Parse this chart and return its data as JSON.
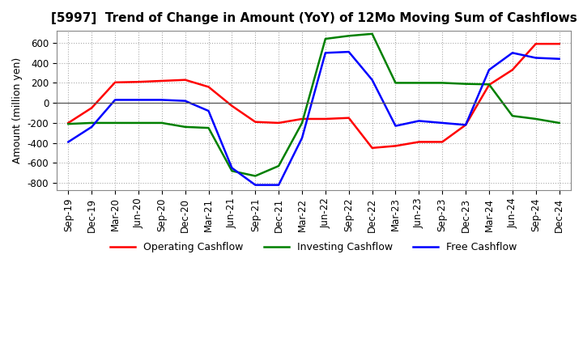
{
  "title": "[5997]  Trend of Change in Amount (YoY) of 12Mo Moving Sum of Cashflows",
  "ylabel": "Amount (million yen)",
  "x_labels": [
    "Sep-19",
    "Dec-19",
    "Mar-20",
    "Jun-20",
    "Sep-20",
    "Dec-20",
    "Mar-21",
    "Jun-21",
    "Sep-21",
    "Dec-21",
    "Mar-22",
    "Jun-22",
    "Sep-22",
    "Dec-22",
    "Mar-23",
    "Jun-23",
    "Sep-23",
    "Dec-23",
    "Mar-24",
    "Jun-24",
    "Sep-24",
    "Dec-24"
  ],
  "operating": [
    -200,
    -50,
    205,
    210,
    220,
    230,
    160,
    -30,
    -190,
    -200,
    -160,
    -160,
    -150,
    -450,
    -430,
    -390,
    -390,
    -220,
    180,
    330,
    590,
    590
  ],
  "investing": [
    -210,
    -200,
    -200,
    -200,
    -200,
    -240,
    -250,
    -680,
    -730,
    -630,
    -200,
    640,
    670,
    690,
    200,
    200,
    200,
    190,
    185,
    -130,
    -160,
    -200
  ],
  "free": [
    -390,
    -240,
    30,
    30,
    30,
    20,
    -80,
    -650,
    -820,
    -820,
    -350,
    500,
    510,
    230,
    -230,
    -180,
    -200,
    -220,
    330,
    500,
    450,
    440
  ],
  "ylim": [
    -870,
    720
  ],
  "yticks": [
    -800,
    -600,
    -400,
    -200,
    0,
    200,
    400,
    600
  ],
  "legend_labels": [
    "Operating Cashflow",
    "Investing Cashflow",
    "Free Cashflow"
  ],
  "line_colors": [
    "#ff0000",
    "#008000",
    "#0000ff"
  ],
  "title_fontsize": 11,
  "label_fontsize": 9,
  "tick_fontsize": 8.5,
  "legend_fontsize": 9
}
